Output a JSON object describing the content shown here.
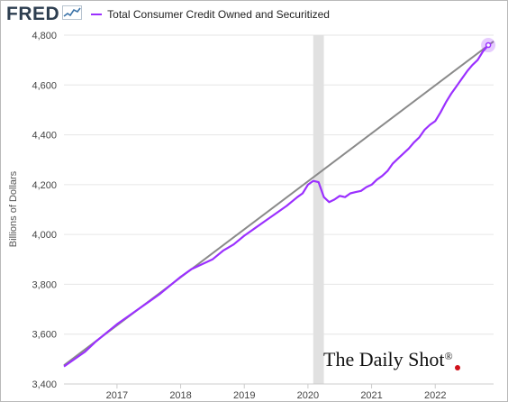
{
  "header": {
    "logo_text": "FRED",
    "legend_label": "Total Consumer Credit Owned and Securitized",
    "series_color": "#9b30ff",
    "logo_icon": "line-chart-icon"
  },
  "watermark": {
    "text": "The Daily Shot",
    "mark": "®"
  },
  "chart_data": {
    "type": "line",
    "title": "",
    "xlabel": "",
    "ylabel": "Billions of Dollars",
    "xlim": [
      "2016-03",
      "2022-12"
    ],
    "ylim": [
      3400,
      4800
    ],
    "yticks": [
      3400,
      3600,
      3800,
      4000,
      4200,
      4400,
      4600,
      4800
    ],
    "ytick_labels": [
      "3,400",
      "3,600",
      "3,800",
      "4,000",
      "4,200",
      "4,400",
      "4,600",
      "4,800"
    ],
    "xtick_labels": [
      "2017",
      "2018",
      "2019",
      "2020",
      "2021",
      "2022"
    ],
    "grid": true,
    "legend": "top-left",
    "recession_shading": {
      "start": "2020-02",
      "end": "2020-04",
      "color": "#e1e1e1"
    },
    "trend_line": {
      "color": "#8a8a8a",
      "from": [
        "2016-03",
        3475
      ],
      "to": [
        "2022-12",
        4775
      ]
    },
    "series": [
      {
        "name": "Total Consumer Credit Owned and Securitized",
        "color": "#9b30ff",
        "x": [
          "2016-03",
          "2016-05",
          "2016-07",
          "2016-09",
          "2016-11",
          "2017-01",
          "2017-03",
          "2017-05",
          "2017-07",
          "2017-09",
          "2017-11",
          "2018-01",
          "2018-03",
          "2018-05",
          "2018-07",
          "2018-09",
          "2018-11",
          "2019-01",
          "2019-03",
          "2019-05",
          "2019-07",
          "2019-09",
          "2019-11",
          "2019-12",
          "2020-01",
          "2020-02",
          "2020-03",
          "2020-04",
          "2020-05",
          "2020-06",
          "2020-07",
          "2020-08",
          "2020-09",
          "2020-10",
          "2020-11",
          "2020-12",
          "2021-01",
          "2021-02",
          "2021-03",
          "2021-04",
          "2021-05",
          "2021-06",
          "2021-07",
          "2021-08",
          "2021-09",
          "2021-10",
          "2021-11",
          "2021-12",
          "2022-01",
          "2022-02",
          "2022-03",
          "2022-04",
          "2022-05",
          "2022-06",
          "2022-07",
          "2022-08",
          "2022-09",
          "2022-10",
          "2022-11"
        ],
        "values": [
          3470,
          3500,
          3530,
          3570,
          3605,
          3640,
          3670,
          3700,
          3730,
          3760,
          3795,
          3830,
          3860,
          3880,
          3900,
          3935,
          3960,
          3995,
          4025,
          4055,
          4085,
          4115,
          4150,
          4165,
          4200,
          4215,
          4210,
          4150,
          4130,
          4140,
          4155,
          4150,
          4165,
          4170,
          4175,
          4190,
          4200,
          4220,
          4235,
          4255,
          4285,
          4305,
          4325,
          4345,
          4370,
          4390,
          4420,
          4440,
          4455,
          4490,
          4530,
          4565,
          4595,
          4625,
          4655,
          4680,
          4700,
          4735,
          4760
        ]
      }
    ],
    "end_marker": {
      "x": "2022-11",
      "y": 4760
    }
  }
}
